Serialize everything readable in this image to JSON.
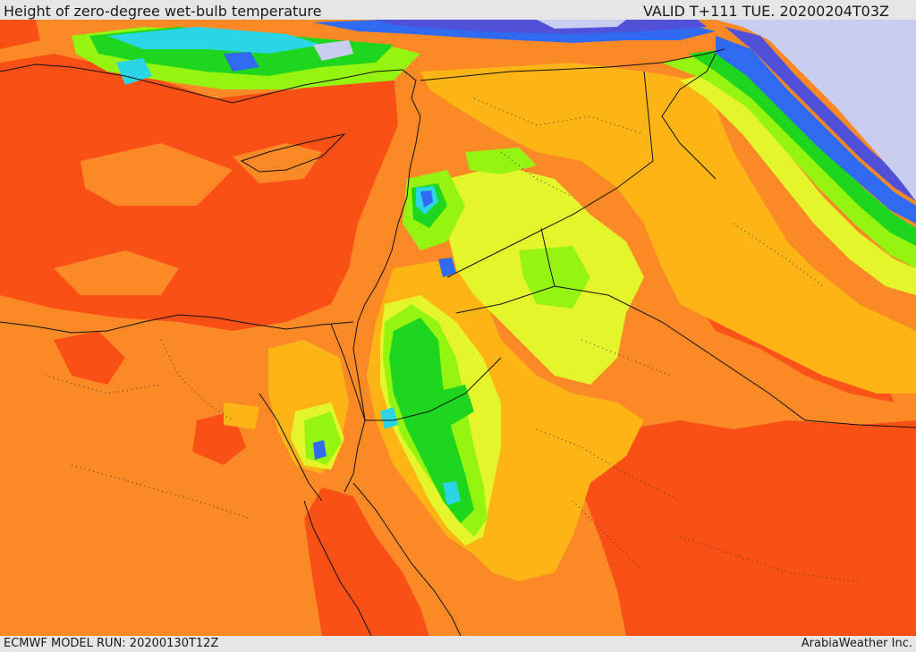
{
  "header": {
    "title": "Height of zero-degree wet-bulb temperature",
    "valid_time": "VALID T+111 TUE. 20200204T03Z"
  },
  "footer": {
    "model_run": "ECMWF MODEL RUN: 20200130T12Z",
    "credit": "ArabiaWeather Inc."
  },
  "palette": {
    "deep_red": "#fa5016",
    "orange": "#fb8a26",
    "amber": "#fdb515",
    "yellow": "#e5f52c",
    "lime": "#95f511",
    "green": "#1fd61f",
    "teal": "#16d27a",
    "cyan": "#2ad6e6",
    "blue": "#2f6af0",
    "indigo": "#5050d8",
    "lavender": "#c9cdf0",
    "border": "#111111"
  }
}
